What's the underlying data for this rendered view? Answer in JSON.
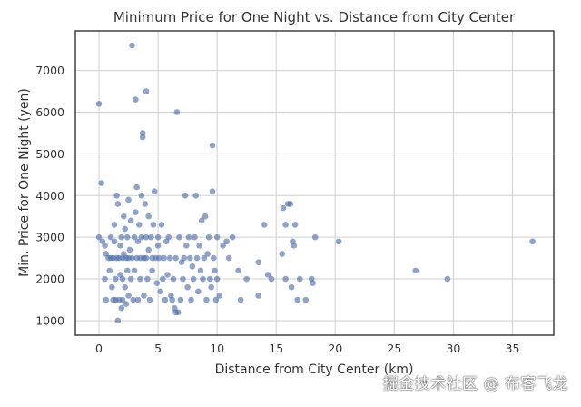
{
  "chart_data": {
    "type": "scatter",
    "title": "Minimum Price for One Night vs. Distance from City Center",
    "xlabel": "Distance from City Center (km)",
    "ylabel": "Min. Price for One Night (yen)",
    "xlim": [
      -2,
      38.5
    ],
    "ylim": [
      650,
      7950
    ],
    "xticks": [
      0,
      5,
      10,
      15,
      20,
      25,
      30,
      35
    ],
    "yticks": [
      1000,
      2000,
      3000,
      4000,
      5000,
      6000,
      7000
    ],
    "grid": true,
    "point_color": "#4c6aa8",
    "points": [
      [
        0.0,
        6200
      ],
      [
        0.2,
        4300
      ],
      [
        0.0,
        3000
      ],
      [
        0.3,
        2900
      ],
      [
        0.5,
        2800
      ],
      [
        0.6,
        2600
      ],
      [
        0.5,
        2000
      ],
      [
        0.6,
        1500
      ],
      [
        0.8,
        2500
      ],
      [
        0.9,
        2200
      ],
      [
        1.0,
        3000
      ],
      [
        1.0,
        2500
      ],
      [
        1.1,
        1800
      ],
      [
        1.2,
        1500
      ],
      [
        1.2,
        2500
      ],
      [
        1.3,
        2900
      ],
      [
        1.3,
        3300
      ],
      [
        1.4,
        2000
      ],
      [
        1.4,
        1500
      ],
      [
        1.5,
        2500
      ],
      [
        1.5,
        4000
      ],
      [
        1.6,
        3800
      ],
      [
        1.6,
        1000
      ],
      [
        1.7,
        2500
      ],
      [
        1.7,
        1500
      ],
      [
        1.8,
        2100
      ],
      [
        1.8,
        2800
      ],
      [
        1.9,
        3000
      ],
      [
        1.9,
        1300
      ],
      [
        2.0,
        2500
      ],
      [
        2.0,
        2000
      ],
      [
        2.0,
        1500
      ],
      [
        2.1,
        3500
      ],
      [
        2.1,
        2600
      ],
      [
        2.2,
        1800
      ],
      [
        2.2,
        3200
      ],
      [
        2.3,
        2500
      ],
      [
        2.3,
        1400
      ],
      [
        2.4,
        3000
      ],
      [
        2.4,
        2200
      ],
      [
        2.5,
        3900
      ],
      [
        2.5,
        2500
      ],
      [
        2.5,
        1600
      ],
      [
        2.6,
        2700
      ],
      [
        2.7,
        3400
      ],
      [
        2.7,
        2000
      ],
      [
        2.8,
        7600
      ],
      [
        2.8,
        2500
      ],
      [
        2.9,
        1500
      ],
      [
        3.0,
        3000
      ],
      [
        3.0,
        2200
      ],
      [
        3.1,
        6300
      ],
      [
        3.1,
        3600
      ],
      [
        3.2,
        4200
      ],
      [
        3.2,
        2500
      ],
      [
        3.3,
        1500
      ],
      [
        3.3,
        2900
      ],
      [
        3.4,
        3300
      ],
      [
        3.5,
        2500
      ],
      [
        3.5,
        2000
      ],
      [
        3.6,
        4000
      ],
      [
        3.6,
        3000
      ],
      [
        3.7,
        5500
      ],
      [
        3.7,
        5400
      ],
      [
        3.8,
        2500
      ],
      [
        3.8,
        1600
      ],
      [
        3.9,
        3800
      ],
      [
        4.0,
        6500
      ],
      [
        4.0,
        3000
      ],
      [
        4.0,
        2500
      ],
      [
        4.1,
        2000
      ],
      [
        4.2,
        3500
      ],
      [
        4.2,
        2700
      ],
      [
        4.3,
        1500
      ],
      [
        4.4,
        3000
      ],
      [
        4.5,
        2500
      ],
      [
        4.5,
        2200
      ],
      [
        4.6,
        3300
      ],
      [
        4.7,
        4100
      ],
      [
        4.8,
        2500
      ],
      [
        4.9,
        1900
      ],
      [
        5.0,
        3000
      ],
      [
        5.0,
        2800
      ],
      [
        5.1,
        2500
      ],
      [
        5.2,
        1700
      ],
      [
        5.3,
        3300
      ],
      [
        5.4,
        2000
      ],
      [
        5.5,
        2500
      ],
      [
        5.6,
        1500
      ],
      [
        5.7,
        2900
      ],
      [
        5.8,
        2100
      ],
      [
        5.9,
        3000
      ],
      [
        6.0,
        2500
      ],
      [
        6.1,
        1600
      ],
      [
        6.2,
        1500
      ],
      [
        6.3,
        2000
      ],
      [
        6.4,
        1300
      ],
      [
        6.5,
        1200
      ],
      [
        6.5,
        2500
      ],
      [
        6.6,
        6000
      ],
      [
        6.7,
        1200
      ],
      [
        6.8,
        3000
      ],
      [
        6.9,
        1500
      ],
      [
        7.0,
        2400
      ],
      [
        7.1,
        2000
      ],
      [
        7.2,
        2500
      ],
      [
        7.3,
        4000
      ],
      [
        7.4,
        2800
      ],
      [
        7.5,
        1800
      ],
      [
        7.6,
        3000
      ],
      [
        7.7,
        2500
      ],
      [
        7.8,
        1500
      ],
      [
        7.9,
        2300
      ],
      [
        8.0,
        2000
      ],
      [
        8.1,
        3000
      ],
      [
        8.2,
        4000
      ],
      [
        8.3,
        2500
      ],
      [
        8.4,
        1700
      ],
      [
        8.5,
        2800
      ],
      [
        8.6,
        2200
      ],
      [
        8.7,
        3400
      ],
      [
        8.8,
        2000
      ],
      [
        8.9,
        2500
      ],
      [
        9.0,
        3500
      ],
      [
        9.1,
        1500
      ],
      [
        9.2,
        2600
      ],
      [
        9.3,
        3000
      ],
      [
        9.4,
        2000
      ],
      [
        9.5,
        1800
      ],
      [
        9.6,
        5200
      ],
      [
        9.6,
        4100
      ],
      [
        9.7,
        2500
      ],
      [
        9.8,
        2200
      ],
      [
        9.9,
        1500
      ],
      [
        10.0,
        3000
      ],
      [
        10.0,
        2000
      ],
      [
        10.2,
        1600
      ],
      [
        10.5,
        2800
      ],
      [
        10.8,
        2900
      ],
      [
        11.0,
        2500
      ],
      [
        11.3,
        3000
      ],
      [
        11.8,
        2200
      ],
      [
        12.0,
        1500
      ],
      [
        12.5,
        2000
      ],
      [
        13.5,
        2400
      ],
      [
        13.5,
        1600
      ],
      [
        14.0,
        3300
      ],
      [
        14.3,
        2100
      ],
      [
        14.6,
        2000
      ],
      [
        15.5,
        2600
      ],
      [
        15.6,
        3700
      ],
      [
        15.8,
        3300
      ],
      [
        15.8,
        2000
      ],
      [
        16.0,
        3800
      ],
      [
        16.2,
        3800
      ],
      [
        16.3,
        1800
      ],
      [
        16.4,
        2900
      ],
      [
        16.5,
        2800
      ],
      [
        16.6,
        3300
      ],
      [
        16.8,
        1500
      ],
      [
        17.0,
        2000
      ],
      [
        17.5,
        1500
      ],
      [
        18.0,
        2000
      ],
      [
        18.1,
        1900
      ],
      [
        18.3,
        3000
      ],
      [
        20.3,
        2900
      ],
      [
        26.8,
        2200
      ],
      [
        29.5,
        2000
      ],
      [
        36.7,
        2900
      ]
    ]
  },
  "watermark": "掘金技术社区 @ 布客飞龙"
}
